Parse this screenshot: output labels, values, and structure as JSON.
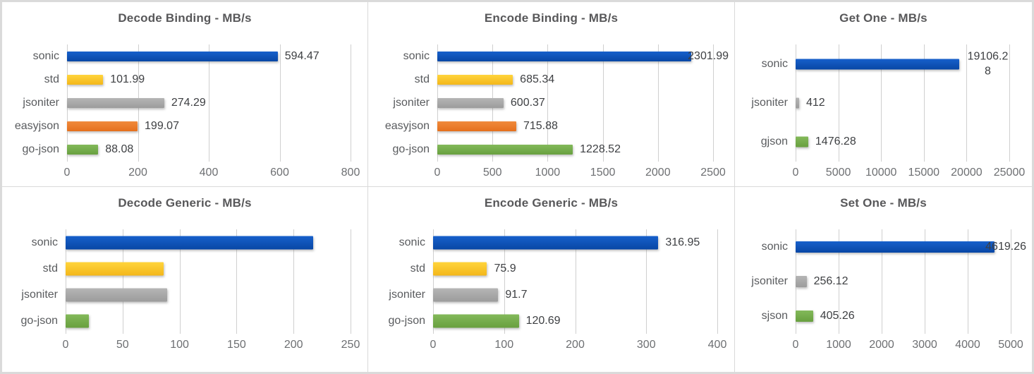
{
  "colors": {
    "blue": {
      "top": "#1760cb",
      "bottom": "#0847a5"
    },
    "yellow": {
      "top": "#ffd43c",
      "bottom": "#f3b71a"
    },
    "gray": {
      "top": "#b5b5b5",
      "bottom": "#9c9c9c"
    },
    "orange": {
      "top": "#f08a3c",
      "bottom": "#e5701d"
    },
    "green": {
      "top": "#83b95a",
      "bottom": "#68a03f"
    },
    "title_text": "#58585a",
    "category_text": "#595b5e",
    "value_text": "#3d3f42",
    "tick_text": "#6d6f72",
    "gridline": "#cfcfcf",
    "panel_background": "#ffffff",
    "frame_border": "#dadada"
  },
  "chart_data": [
    {
      "type": "bar",
      "orientation": "horizontal",
      "title": "Decode Binding - MB/s",
      "categories": [
        "sonic",
        "std",
        "jsoniter",
        "easyjson",
        "go-json"
      ],
      "values": [
        594.47,
        101.99,
        274.29,
        199.07,
        88.08
      ],
      "value_labels": [
        "594.47",
        "101.99",
        "274.29",
        "199.07",
        "88.08"
      ],
      "bar_colors": [
        "blue",
        "yellow",
        "gray",
        "orange",
        "green"
      ],
      "labels_shown": true,
      "xlim": [
        0,
        800
      ],
      "xticks": [
        0,
        200,
        400,
        600,
        800
      ],
      "grid": true,
      "legend": "none"
    },
    {
      "type": "bar",
      "orientation": "horizontal",
      "title": "Encode Binding - MB/s",
      "categories": [
        "sonic",
        "std",
        "jsoniter",
        "easyjson",
        "go-json"
      ],
      "values": [
        2301.99,
        685.34,
        600.37,
        715.88,
        1228.52
      ],
      "value_labels": [
        "2301.99",
        "685.34",
        "600.37",
        "715.88",
        "1228.52"
      ],
      "bar_colors": [
        "blue",
        "yellow",
        "gray",
        "orange",
        "green"
      ],
      "labels_shown": true,
      "xlim": [
        0,
        2500
      ],
      "xticks": [
        0,
        500,
        1000,
        1500,
        2000,
        2500
      ],
      "grid": true,
      "legend": "none"
    },
    {
      "type": "bar",
      "orientation": "horizontal",
      "title": "Get One - MB/s",
      "categories": [
        "sonic",
        "jsoniter",
        "gjson"
      ],
      "values": [
        19106.28,
        412,
        1476.28
      ],
      "value_labels": [
        "19106.2\n8",
        "412",
        "1476.28"
      ],
      "bar_colors": [
        "blue",
        "gray",
        "green"
      ],
      "labels_shown": true,
      "xlim": [
        0,
        25000
      ],
      "xticks": [
        0,
        5000,
        10000,
        15000,
        20000,
        25000
      ],
      "grid": true,
      "legend": "none"
    },
    {
      "type": "bar",
      "orientation": "horizontal",
      "title": "Decode Generic - MB/s",
      "categories": [
        "sonic",
        "std",
        "jsoniter",
        "go-json"
      ],
      "values": [
        217,
        86,
        89,
        20.5
      ],
      "value_labels": [
        "",
        "",
        "",
        ""
      ],
      "bar_colors": [
        "blue",
        "yellow",
        "gray",
        "green"
      ],
      "labels_shown": false,
      "values_note": "no data labels shown; values estimated from bar lengths",
      "xlim": [
        0,
        250
      ],
      "xticks": [
        0,
        50,
        100,
        150,
        200,
        250
      ],
      "grid": true,
      "legend": "none"
    },
    {
      "type": "bar",
      "orientation": "horizontal",
      "title": "Encode Generic - MB/s",
      "categories": [
        "sonic",
        "std",
        "jsoniter",
        "go-json"
      ],
      "values": [
        316.95,
        75.9,
        91.7,
        120.69
      ],
      "value_labels": [
        "316.95",
        "75.9",
        "91.7",
        "120.69"
      ],
      "bar_colors": [
        "blue",
        "yellow",
        "gray",
        "green"
      ],
      "labels_shown": true,
      "xlim": [
        0,
        400
      ],
      "xticks": [
        0,
        100,
        200,
        300,
        400
      ],
      "grid": true,
      "legend": "none"
    },
    {
      "type": "bar",
      "orientation": "horizontal",
      "title": "Set One - MB/s",
      "categories": [
        "sonic",
        "jsoniter",
        "sjson"
      ],
      "values": [
        4619.26,
        256.12,
        405.26
      ],
      "value_labels": [
        "4619.26",
        "256.12",
        "405.26"
      ],
      "bar_colors": [
        "blue",
        "gray",
        "green"
      ],
      "labels_shown": true,
      "xlim": [
        0,
        5000
      ],
      "xticks": [
        0,
        1000,
        2000,
        3000,
        4000,
        5000
      ],
      "grid": true,
      "legend": "none"
    }
  ]
}
